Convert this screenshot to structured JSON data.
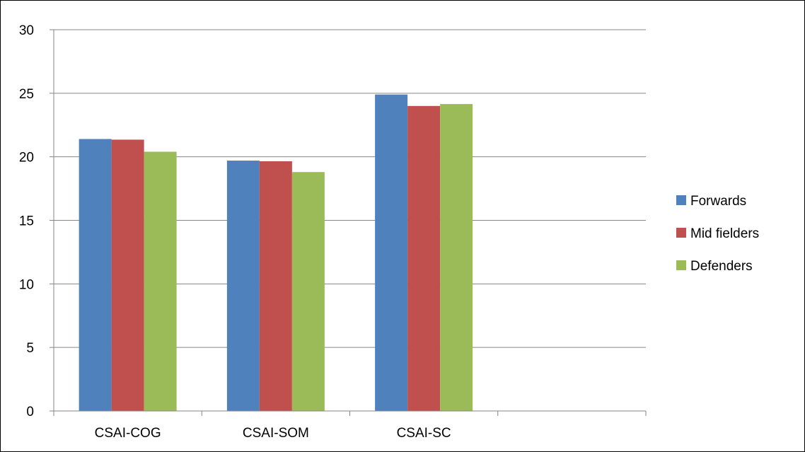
{
  "chart_data": {
    "type": "bar",
    "categories": [
      "CSAI-COG",
      "CSAI-SOM",
      "CSAI-SC",
      ""
    ],
    "series": [
      {
        "name": "Forwards",
        "values": [
          21.4,
          19.7,
          24.9,
          null
        ],
        "color": "#4F81BD"
      },
      {
        "name": "Mid fielders",
        "values": [
          21.35,
          19.65,
          24.0,
          null
        ],
        "color": "#C0504D"
      },
      {
        "name": "Defenders",
        "values": [
          20.4,
          18.8,
          24.15,
          null
        ],
        "color": "#9BBB59"
      }
    ],
    "title": "",
    "xlabel": "",
    "ylabel": "",
    "ylim": [
      0,
      30
    ],
    "yticks": [
      "0",
      "5",
      "10",
      "15",
      "20",
      "25",
      "30"
    ],
    "grid": true,
    "legend_position": "right"
  }
}
